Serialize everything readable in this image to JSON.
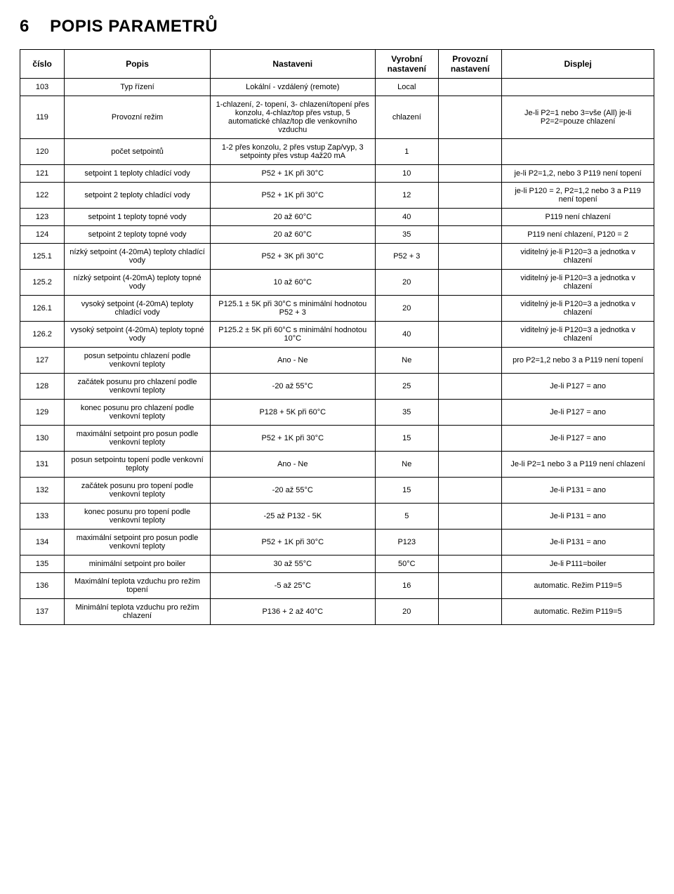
{
  "section": {
    "number": "6",
    "title": "POPIS PARAMETRŮ"
  },
  "headers": {
    "cislo": "číslo",
    "popis": "Popis",
    "nast": "Nastaveni",
    "vyr": "Vyrobní nastavení",
    "prov": "Provozní nastavení",
    "disp": "Displej"
  },
  "rows": [
    {
      "cislo": "103",
      "popis": "Typ řízení",
      "nast": "Lokální - vzdálený (remote)",
      "vyr": "Local",
      "prov": "",
      "disp": ""
    },
    {
      "cislo": "119",
      "popis": "Provozní režim",
      "nast": "1-chlazení, 2- topení, 3- chlazení/topení přes konzolu, 4-chlaz/top přes vstup, 5 automatické chlaz/top dle venkovního vzduchu",
      "vyr": "chlazení",
      "prov": "",
      "disp": "Je-li P2=1 nebo 3=vše (All) je-li P2=2=pouze chlazení"
    },
    {
      "cislo": "120",
      "popis": "počet setpointů",
      "nast": "1-2 přes konzolu, 2 přes vstup Zap/vyp, 3 setpointy přes vstup 4až20 mA",
      "vyr": "1",
      "prov": "",
      "disp": ""
    },
    {
      "cislo": "121",
      "popis": "setpoint 1 teploty chladící vody",
      "nast": "P52 + 1K při 30°C",
      "vyr": "10",
      "prov": "",
      "disp": "je-li P2=1,2, nebo 3 P119 není topení"
    },
    {
      "cislo": "122",
      "popis": "setpoint 2 teploty chladící vody",
      "nast": "P52 + 1K při 30°C",
      "vyr": "12",
      "prov": "",
      "disp": "je-li P120 = 2, P2=1,2 nebo 3 a P119 není topení"
    },
    {
      "cislo": "123",
      "popis": "setpoint 1 teploty topné vody",
      "nast": "20 až 60°C",
      "vyr": "40",
      "prov": "",
      "disp": "P119 není chlazení"
    },
    {
      "cislo": "124",
      "popis": "setpoint 2 teploty topné vody",
      "nast": "20 až 60°C",
      "vyr": "35",
      "prov": "",
      "disp": "P119 není chlazení, P120 = 2"
    },
    {
      "cislo": "125.1",
      "popis": "nízký setpoint (4-20mA) teploty chladící vody",
      "nast": "P52 + 3K při 30°C",
      "vyr": "P52 + 3",
      "prov": "",
      "disp": "viditelný je-li P120=3 a jednotka v chlazení"
    },
    {
      "cislo": "125.2",
      "popis": "nízký setpoint (4-20mA) teploty topné vody",
      "nast": "10 až 60°C",
      "vyr": "20",
      "prov": "",
      "disp": "viditelný je-li P120=3 a jednotka v chlazení"
    },
    {
      "cislo": "126.1",
      "popis": "vysoký setpoint (4-20mA) teploty chladící vody",
      "nast": "P125.1 ± 5K při 30°C s minimální hodnotou P52 + 3",
      "vyr": "20",
      "prov": "",
      "disp": "viditelný je-li P120=3 a jednotka v chlazení"
    },
    {
      "cislo": "126.2",
      "popis": "vysoký setpoint (4-20mA) teploty topné vody",
      "nast": "P125.2 ± 5K při 60°C s minimální hodnotou 10°C",
      "vyr": "40",
      "prov": "",
      "disp": "viditelný je-li P120=3 a jednotka v chlazení"
    },
    {
      "cislo": "127",
      "popis": "posun setpointu chlazení podle venkovní teploty",
      "nast": "Ano - Ne",
      "vyr": "Ne",
      "prov": "",
      "disp": "pro P2=1,2 nebo 3 a P119 není topení"
    },
    {
      "cislo": "128",
      "popis": "začátek posunu pro chlazení podle venkovní teploty",
      "nast": "-20 až 55°C",
      "vyr": "25",
      "prov": "",
      "disp": "Je-li P127 = ano"
    },
    {
      "cislo": "129",
      "popis": "konec posunu pro chlazení podle venkovní teploty",
      "nast": "P128 + 5K při 60°C",
      "vyr": "35",
      "prov": "",
      "disp": "Je-li P127 = ano"
    },
    {
      "cislo": "130",
      "popis": "maximální setpoint pro posun podle venkovní teploty",
      "nast": "P52 + 1K při 30°C",
      "vyr": "15",
      "prov": "",
      "disp": "Je-li P127 = ano"
    },
    {
      "cislo": "131",
      "popis": "posun setpointu topení podle venkovní teploty",
      "nast": "Ano - Ne",
      "vyr": "Ne",
      "prov": "",
      "disp": "Je-li P2=1 nebo 3 a P119 není chlazení"
    },
    {
      "cislo": "132",
      "popis": "začátek posunu pro topení podle venkovní teploty",
      "nast": "-20 až 55°C",
      "vyr": "15",
      "prov": "",
      "disp": "Je-li P131 = ano"
    },
    {
      "cislo": "133",
      "popis": "konec posunu pro topení podle venkovní teploty",
      "nast": "-25 až P132 - 5K",
      "vyr": "5",
      "prov": "",
      "disp": "Je-li P131 = ano"
    },
    {
      "cislo": "134",
      "popis": "maximální setpoint pro posun podle venkovní teploty",
      "nast": "P52 + 1K při 30°C",
      "vyr": "P123",
      "prov": "",
      "disp": "Je-li P131 = ano"
    },
    {
      "cislo": "135",
      "popis": "minimální setpoint pro boiler",
      "nast": "30 až 55°C",
      "vyr": "50°C",
      "prov": "",
      "disp": "Je-li P111=boiler"
    },
    {
      "cislo": "136",
      "popis": "Maximální teplota vzduchu pro režim topení",
      "nast": "-5 až 25°C",
      "vyr": "16",
      "prov": "",
      "disp": "automatic. Režim P119=5"
    },
    {
      "cislo": "137",
      "popis": "Minimální teplota vzduchu pro režim chlazení",
      "nast": "P136 + 2 až 40°C",
      "vyr": "20",
      "prov": "",
      "disp": "automatic. Režim P119=5"
    }
  ]
}
